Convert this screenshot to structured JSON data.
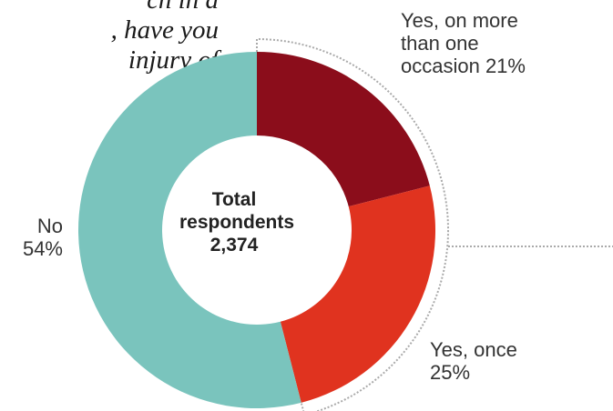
{
  "question_lines": [
    "ch in a",
    ", have you",
    "injury of"
  ],
  "colors": {
    "yes_more": "#8b0d1b",
    "yes_once": "#e0331f",
    "no": "#7ac4bd",
    "leader": "#aaaaaa"
  },
  "labels": {
    "yes_more": [
      "Yes, on more",
      "than one",
      "occasion 21%"
    ],
    "yes_once": [
      "Yes, once",
      "25%"
    ],
    "no": [
      "No",
      "54%"
    ]
  },
  "center": {
    "line1": "Total",
    "line2": "respondents",
    "line3": "2,374"
  },
  "chart_data": {
    "type": "pie",
    "donut": true,
    "total_respondents": 2374,
    "slices": [
      {
        "label": "Yes, on more than one occasion",
        "value": 21,
        "color": "#8b0d1b"
      },
      {
        "label": "Yes, once",
        "value": 25,
        "color": "#e0331f"
      },
      {
        "label": "No",
        "value": 54,
        "color": "#7ac4bd"
      }
    ],
    "unit": "%",
    "start": "12 o'clock",
    "direction": "clockwise"
  }
}
